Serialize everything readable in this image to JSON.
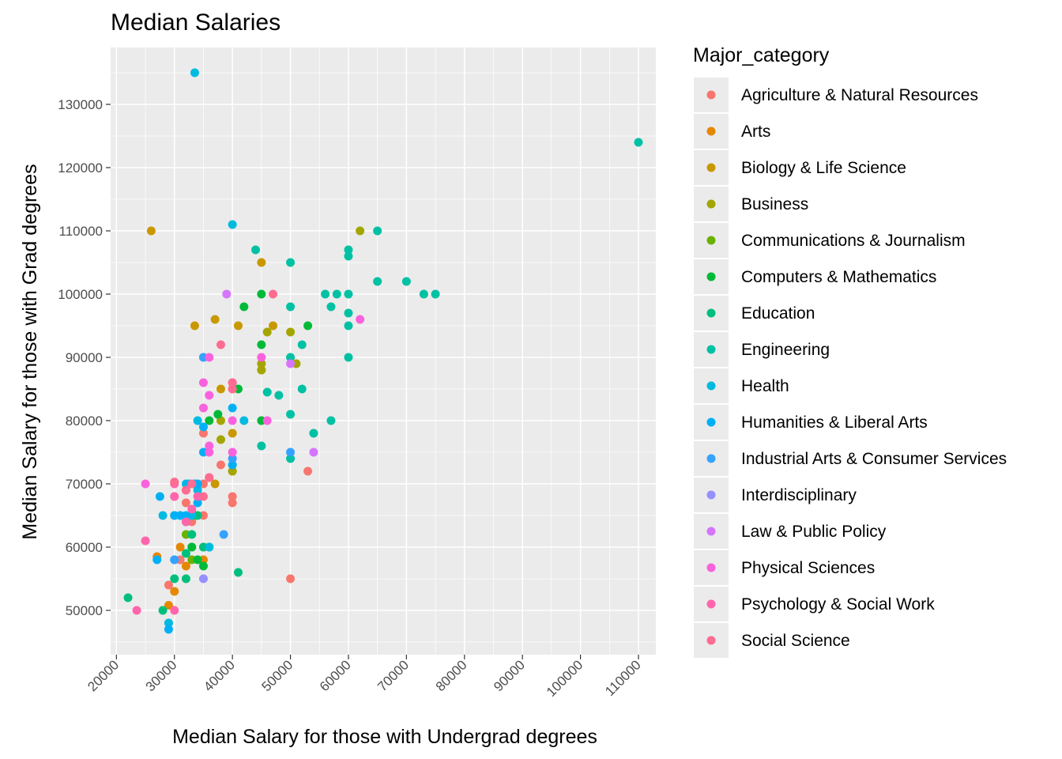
{
  "chart_data": {
    "type": "scatter",
    "title": "Median Salaries",
    "xlabel": "Median Salary for those with Undergrad degrees",
    "ylabel": "Median Salary for those with Grad degrees",
    "xlim": [
      19000,
      113000
    ],
    "ylim": [
      43000,
      139000
    ],
    "xticks": [
      20000,
      30000,
      40000,
      50000,
      60000,
      70000,
      80000,
      90000,
      100000,
      110000
    ],
    "yticks": [
      50000,
      60000,
      70000,
      80000,
      90000,
      100000,
      110000,
      120000,
      130000
    ],
    "grid": true,
    "legend": {
      "title": "Major_category",
      "position": "right"
    },
    "series": [
      {
        "name": "Agriculture & Natural Resources",
        "color": "#F8766D",
        "points": [
          [
            29000,
            54000
          ],
          [
            31000,
            58000
          ],
          [
            32000,
            67000
          ],
          [
            33000,
            64000
          ],
          [
            35000,
            65000
          ],
          [
            35000,
            78000
          ],
          [
            35000,
            70000
          ],
          [
            40000,
            68000
          ],
          [
            40000,
            67000
          ],
          [
            40000,
            85000
          ],
          [
            53000,
            72000
          ],
          [
            50000,
            55000
          ],
          [
            38000,
            73000
          ],
          [
            30000,
            68000
          ]
        ]
      },
      {
        "name": "Arts",
        "color": "#E58700",
        "points": [
          [
            27000,
            58500
          ],
          [
            29000,
            50800
          ],
          [
            30000,
            53000
          ],
          [
            31000,
            60000
          ],
          [
            32000,
            57000
          ],
          [
            35000,
            58000
          ],
          [
            30000,
            65000
          ]
        ]
      },
      {
        "name": "Biology & Life Science",
        "color": "#C99800",
        "points": [
          [
            26000,
            110000
          ],
          [
            33500,
            95000
          ],
          [
            37000,
            96000
          ],
          [
            38000,
            85000
          ],
          [
            40000,
            85000
          ],
          [
            41000,
            95000
          ],
          [
            45000,
            105000
          ],
          [
            47000,
            95000
          ],
          [
            45000,
            88000
          ],
          [
            40000,
            78000
          ],
          [
            37000,
            70000
          ],
          [
            40000,
            72000
          ]
        ]
      },
      {
        "name": "Business",
        "color": "#A3A500",
        "points": [
          [
            38000,
            77000
          ],
          [
            38000,
            80000
          ],
          [
            40000,
            73000
          ],
          [
            45000,
            89000
          ],
          [
            46000,
            94000
          ],
          [
            50000,
            94000
          ],
          [
            51000,
            89000
          ],
          [
            62000,
            110000
          ],
          [
            45000,
            88000
          ],
          [
            40000,
            72000
          ]
        ]
      },
      {
        "name": "Communications & Journalism",
        "color": "#6BB100",
        "points": [
          [
            32000,
            62000
          ],
          [
            33000,
            60000
          ],
          [
            33500,
            65000
          ],
          [
            35000,
            60000
          ],
          [
            33000,
            58000
          ]
        ]
      },
      {
        "name": "Computers & Mathematics",
        "color": "#00BA38",
        "points": [
          [
            36000,
            80000
          ],
          [
            37500,
            81000
          ],
          [
            41000,
            85000
          ],
          [
            42000,
            98000
          ],
          [
            45000,
            100000
          ],
          [
            45000,
            92000
          ],
          [
            45000,
            80000
          ],
          [
            53000,
            95000
          ],
          [
            35000,
            57000
          ],
          [
            34000,
            58000
          ],
          [
            33000,
            60000
          ]
        ]
      },
      {
        "name": "Education",
        "color": "#00BF7D",
        "points": [
          [
            22000,
            52000
          ],
          [
            28000,
            50000
          ],
          [
            30000,
            55000
          ],
          [
            32000,
            55000
          ],
          [
            32000,
            59000
          ],
          [
            33000,
            62000
          ],
          [
            34000,
            65000
          ],
          [
            35000,
            60000
          ],
          [
            41000,
            56000
          ],
          [
            36000,
            60000
          ]
        ]
      },
      {
        "name": "Engineering",
        "color": "#00C1A3",
        "points": [
          [
            44000,
            107000
          ],
          [
            50000,
            105000
          ],
          [
            50000,
            98000
          ],
          [
            52000,
            92000
          ],
          [
            50000,
            90000
          ],
          [
            52000,
            85000
          ],
          [
            50000,
            81000
          ],
          [
            54000,
            78000
          ],
          [
            57000,
            80000
          ],
          [
            50000,
            74000
          ],
          [
            56000,
            100000
          ],
          [
            57000,
            98000
          ],
          [
            58000,
            100000
          ],
          [
            60000,
            107000
          ],
          [
            60000,
            106000
          ],
          [
            60000,
            100000
          ],
          [
            60000,
            97000
          ],
          [
            60000,
            95000
          ],
          [
            60000,
            90000
          ],
          [
            65000,
            110000
          ],
          [
            65000,
            102000
          ],
          [
            70000,
            102000
          ],
          [
            73000,
            100000
          ],
          [
            75000,
            100000
          ],
          [
            110000,
            124000
          ],
          [
            45000,
            76000
          ],
          [
            48000,
            84000
          ],
          [
            46000,
            84500
          ]
        ]
      },
      {
        "name": "Health",
        "color": "#00BAE0",
        "points": [
          [
            33500,
            135000
          ],
          [
            40000,
            111000
          ],
          [
            28000,
            65000
          ],
          [
            29000,
            48000
          ],
          [
            34000,
            69000
          ],
          [
            36000,
            60000
          ],
          [
            42000,
            80000
          ],
          [
            34000,
            80000
          ],
          [
            32000,
            70000
          ],
          [
            31000,
            65000
          ],
          [
            33000,
            65000
          ]
        ]
      },
      {
        "name": "Humanities & Liberal Arts",
        "color": "#00B0F6",
        "points": [
          [
            27000,
            58000
          ],
          [
            27500,
            68000
          ],
          [
            29000,
            47000
          ],
          [
            30000,
            58000
          ],
          [
            30000,
            65000
          ],
          [
            31000,
            65000
          ],
          [
            32000,
            65000
          ],
          [
            32500,
            70000
          ],
          [
            33500,
            70000
          ],
          [
            34000,
            67000
          ],
          [
            34000,
            70000
          ],
          [
            35000,
            75000
          ],
          [
            35000,
            79000
          ],
          [
            40000,
            82000
          ],
          [
            40000,
            73000
          ],
          [
            35000,
            90000
          ],
          [
            32000,
            64000
          ]
        ]
      },
      {
        "name": "Industrial Arts & Consumer Services",
        "color": "#35A2FF",
        "points": [
          [
            35000,
            90000
          ],
          [
            38500,
            62000
          ],
          [
            50000,
            75000
          ],
          [
            40000,
            74000
          ],
          [
            30000,
            58000
          ]
        ]
      },
      {
        "name": "Interdisciplinary",
        "color": "#9590FF",
        "points": [
          [
            35000,
            55000
          ]
        ]
      },
      {
        "name": "Law & Public Policy",
        "color": "#D575FE",
        "points": [
          [
            39000,
            100000
          ],
          [
            50000,
            89000
          ],
          [
            54000,
            75000
          ]
        ]
      },
      {
        "name": "Physical Sciences",
        "color": "#F962DD",
        "points": [
          [
            25000,
            70000
          ],
          [
            35000,
            86000
          ],
          [
            35000,
            82000
          ],
          [
            36000,
            84000
          ],
          [
            36000,
            90000
          ],
          [
            36000,
            76000
          ],
          [
            36000,
            75000
          ],
          [
            40000,
            80000
          ],
          [
            40000,
            75000
          ],
          [
            45000,
            90000
          ],
          [
            46000,
            80000
          ],
          [
            62000,
            96000
          ]
        ]
      },
      {
        "name": "Psychology & Social Work",
        "color": "#FF65AC",
        "points": [
          [
            23500,
            50000
          ],
          [
            25000,
            61000
          ],
          [
            30000,
            50000
          ],
          [
            30000,
            68000
          ],
          [
            32000,
            64000
          ],
          [
            33000,
            66000
          ],
          [
            34000,
            68000
          ],
          [
            36000,
            71000
          ],
          [
            32000,
            69000
          ],
          [
            40000,
            86000
          ],
          [
            30000,
            70000
          ]
        ]
      },
      {
        "name": "Social Science",
        "color": "#FF6C91",
        "points": [
          [
            30000,
            70300
          ],
          [
            32000,
            69000
          ],
          [
            35000,
            68000
          ],
          [
            38000,
            92000
          ],
          [
            40000,
            86000
          ],
          [
            40000,
            85000
          ],
          [
            47000,
            100000
          ],
          [
            36000,
            71000
          ],
          [
            33000,
            70000
          ]
        ]
      }
    ]
  }
}
